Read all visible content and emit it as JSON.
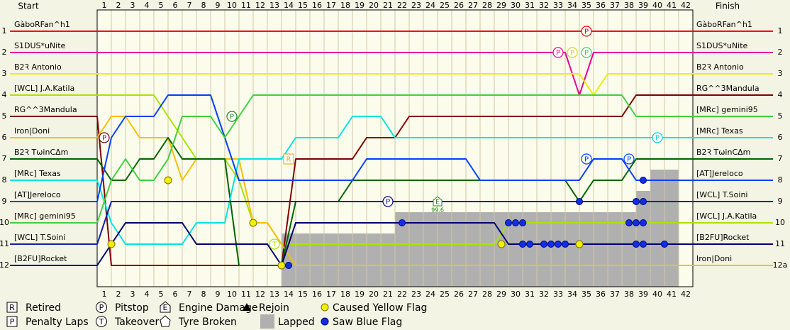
{
  "chart_data": {
    "type": "line",
    "title": "Start",
    "title_right": "Finish",
    "x": [
      0,
      1,
      2,
      3,
      4,
      5,
      6,
      7,
      8,
      9,
      10,
      11,
      12,
      13,
      14,
      15,
      16,
      17,
      18,
      19,
      20,
      21,
      22,
      23,
      24,
      25,
      26,
      27,
      28,
      29,
      30,
      31,
      32,
      33,
      34,
      35,
      36,
      37,
      38,
      39,
      40,
      41,
      42
    ],
    "xlim": [
      0,
      42
    ],
    "xticks": [
      1,
      2,
      3,
      4,
      5,
      6,
      7,
      8,
      9,
      10,
      11,
      12,
      13,
      14,
      15,
      16,
      17,
      18,
      19,
      20,
      21,
      22,
      23,
      24,
      25,
      26,
      27,
      28,
      29,
      30,
      31,
      32,
      33,
      34,
      35,
      36,
      37,
      38,
      39,
      40,
      41,
      42
    ],
    "ylim": [
      0,
      13
    ],
    "yticks": [
      1,
      2,
      3,
      4,
      5,
      6,
      7,
      8,
      9,
      10,
      11,
      12
    ],
    "y2ticks": [
      1,
      2,
      3,
      4,
      5,
      6,
      7,
      8,
      9,
      10,
      11,
      {
        "value": 12,
        "label": "12a"
      }
    ],
    "series": [
      {
        "name": "GàboRFan^h1",
        "color": "#ff0000",
        "values": [
          1,
          1,
          1,
          1,
          1,
          1,
          1,
          1,
          1,
          1,
          1,
          1,
          1,
          1,
          1,
          1,
          1,
          1,
          1,
          1,
          1,
          1,
          1,
          1,
          1,
          1,
          1,
          1,
          1,
          1,
          1,
          1,
          1,
          1,
          1,
          1,
          1,
          1,
          1,
          1,
          1,
          1,
          1
        ]
      },
      {
        "name": "S1DUS*uNite",
        "color": "#e8009a",
        "values": [
          2,
          2,
          2,
          2,
          2,
          2,
          2,
          2,
          2,
          2,
          2,
          2,
          2,
          2,
          2,
          2,
          2,
          2,
          2,
          2,
          2,
          2,
          2,
          2,
          2,
          2,
          2,
          2,
          2,
          2,
          2,
          2,
          2,
          2,
          4,
          2,
          2,
          2,
          2,
          2,
          2,
          2,
          2
        ]
      },
      {
        "name": "B2Ꝛ Antonio",
        "color": "#eeee00",
        "values": [
          3,
          3,
          3,
          3,
          3,
          3,
          3,
          3,
          3,
          3,
          3,
          3,
          3,
          3,
          3,
          3,
          3,
          3,
          3,
          3,
          3,
          3,
          3,
          3,
          3,
          3,
          3,
          3,
          3,
          3,
          3,
          3,
          3,
          3,
          3,
          4,
          3,
          3,
          3,
          3,
          3,
          3,
          3
        ]
      },
      {
        "name": "[WCL] J.A.Katila",
        "color": "#a8e400",
        "values": [
          4,
          4,
          4,
          4,
          4,
          5,
          6,
          7,
          7,
          7,
          8,
          10,
          10,
          11,
          11,
          11,
          11,
          11,
          11,
          11,
          11,
          11,
          11,
          11,
          11,
          11,
          11,
          11,
          11,
          10,
          10,
          10,
          10,
          10,
          10,
          10,
          10,
          10,
          10,
          10,
          10,
          10,
          10
        ]
      },
      {
        "name": "RG^^3Mandula",
        "color": "#800000",
        "values": [
          5,
          12,
          12,
          12,
          12,
          12,
          12,
          12,
          12,
          12,
          12,
          12,
          12,
          12,
          7,
          7,
          7,
          7,
          7,
          6,
          6,
          6,
          5,
          5,
          5,
          5,
          5,
          5,
          5,
          5,
          5,
          5,
          5,
          5,
          5,
          5,
          5,
          5,
          4,
          4,
          4,
          4,
          4
        ]
      },
      {
        "name": "Iron|Doni",
        "color": "#f8c000",
        "values": [
          6,
          5,
          5,
          6,
          6,
          6,
          8,
          7,
          7,
          7,
          7,
          10,
          10,
          11,
          12,
          12,
          12,
          12,
          12,
          12,
          12,
          12,
          12,
          12,
          12,
          12,
          12,
          12,
          12,
          12,
          12,
          12,
          12,
          12,
          12,
          12,
          12,
          12,
          12,
          12,
          12,
          12,
          12
        ]
      },
      {
        "name": "B2Ꝛ TωinCΔm",
        "color": "#006400",
        "values": [
          7,
          8,
          8,
          7,
          7,
          6,
          7,
          7,
          7,
          7,
          12,
          12,
          12,
          12,
          9,
          9,
          9,
          9,
          8,
          8,
          8,
          8,
          8,
          8,
          8,
          8,
          8,
          8,
          8,
          8,
          8,
          8,
          8,
          8,
          9,
          8,
          8,
          8,
          7,
          7,
          7,
          7,
          7
        ]
      },
      {
        "name": "[MRc] Texas",
        "color": "#00e4e4",
        "values": [
          8,
          10,
          11,
          11,
          11,
          11,
          11,
          10,
          10,
          10,
          7,
          7,
          7,
          7,
          6,
          6,
          6,
          6,
          5,
          5,
          5,
          6,
          6,
          6,
          6,
          6,
          6,
          6,
          6,
          6,
          6,
          6,
          6,
          6,
          6,
          6,
          6,
          6,
          6,
          6,
          6,
          6,
          6
        ]
      },
      {
        "name": "[AT]Jereloco",
        "color": "#0040ff",
        "values": [
          9,
          6,
          5,
          5,
          5,
          4,
          4,
          4,
          4,
          6,
          8,
          8,
          8,
          8,
          8,
          8,
          8,
          8,
          8,
          7,
          7,
          7,
          7,
          7,
          7,
          7,
          7,
          8,
          8,
          8,
          8,
          8,
          8,
          8,
          8,
          7,
          7,
          7,
          8,
          8,
          8,
          8,
          8
        ]
      },
      {
        "name": "[MRc] gemini95",
        "color": "#40d040",
        "values": [
          10,
          8,
          7,
          8,
          8,
          7,
          5,
          5,
          5,
          6,
          5,
          4,
          4,
          4,
          4,
          4,
          4,
          4,
          4,
          4,
          4,
          4,
          4,
          4,
          4,
          4,
          4,
          4,
          4,
          4,
          4,
          4,
          4,
          4,
          4,
          4,
          4,
          4,
          5,
          5,
          5,
          5,
          5
        ]
      },
      {
        "name": "[WCL] T.Soini",
        "color": "#1020b0",
        "values": [
          11,
          9,
          9,
          9,
          9,
          9,
          9,
          9,
          9,
          9,
          9,
          9,
          9,
          9,
          9,
          9,
          9,
          9,
          9,
          9,
          9,
          9,
          9,
          9,
          9,
          9,
          9,
          9,
          9,
          9,
          9,
          9,
          9,
          9,
          9,
          9,
          9,
          9,
          9,
          9,
          9,
          9,
          9
        ]
      },
      {
        "name": "[B2FU]Rocket",
        "color": "#000070",
        "values": [
          12,
          11,
          10,
          10,
          10,
          10,
          10,
          11,
          11,
          11,
          11,
          11,
          11,
          12,
          10,
          10,
          10,
          10,
          10,
          10,
          10,
          10,
          10,
          10,
          10,
          10,
          10,
          10,
          10,
          11,
          11,
          11,
          11,
          11,
          11,
          11,
          11,
          11,
          11,
          11,
          11,
          11,
          11
        ]
      }
    ],
    "lapped": [
      null,
      null,
      null,
      null,
      null,
      null,
      null,
      null,
      null,
      null,
      null,
      null,
      null,
      10.5,
      10.5,
      10.5,
      10.5,
      10.5,
      10.5,
      10.5,
      10.5,
      9.5,
      9.5,
      9.5,
      9.5,
      9.5,
      9.5,
      9.5,
      9.5,
      9.5,
      9.5,
      9.5,
      9.5,
      9.5,
      9.5,
      9.5,
      9.5,
      9.5,
      8.5,
      7.5,
      7.5,
      null
    ],
    "pitstops": [
      {
        "x": 0.5,
        "pos": 6,
        "color": "#800000"
      },
      {
        "x": 9.5,
        "pos": 5,
        "color": "#208020"
      },
      {
        "x": 20.5,
        "pos": 9,
        "color": "#000080"
      },
      {
        "x": 32.5,
        "pos": 2,
        "color": "#e8009a"
      },
      {
        "x": 33.5,
        "pos": 2,
        "color": "#d8d800"
      },
      {
        "x": 34.5,
        "pos": 2,
        "color": "#40d040"
      },
      {
        "x": 34.5,
        "pos": 1,
        "color": "#ff0000"
      },
      {
        "x": 34.5,
        "pos": 7,
        "color": "#0040ff"
      },
      {
        "x": 37.5,
        "pos": 7,
        "color": "#0040ff"
      },
      {
        "x": 39.5,
        "pos": 6,
        "color": "#00d0e0"
      }
    ],
    "retired": [
      {
        "x": 13.5,
        "pos": 7,
        "color": "#f0a000"
      }
    ],
    "takeovers": [
      {
        "x": 12.5,
        "pos": 11,
        "color": "#a8e400"
      }
    ],
    "engine_damage": [
      {
        "x": 24,
        "pos": 9,
        "note": "99.6",
        "color": "#208020"
      }
    ],
    "yellow_flags": [
      {
        "x": 1,
        "pos": 11
      },
      {
        "x": 5,
        "pos": 8
      },
      {
        "x": 11,
        "pos": 10
      },
      {
        "x": 13,
        "pos": 12
      },
      {
        "x": 28.5,
        "pos": 11
      },
      {
        "x": 34,
        "pos": 11
      }
    ],
    "blue_flags": [
      {
        "x": 13.5,
        "pos": 12
      },
      {
        "x": 21.5,
        "pos": 10
      },
      {
        "x": 29,
        "pos": 10
      },
      {
        "x": 29.5,
        "pos": 10
      },
      {
        "x": 30,
        "pos": 10
      },
      {
        "x": 30,
        "pos": 11
      },
      {
        "x": 30.5,
        "pos": 11
      },
      {
        "x": 31.5,
        "pos": 11
      },
      {
        "x": 32,
        "pos": 11
      },
      {
        "x": 32.5,
        "pos": 11
      },
      {
        "x": 33,
        "pos": 11
      },
      {
        "x": 34,
        "pos": 9
      },
      {
        "x": 37.5,
        "pos": 10
      },
      {
        "x": 38,
        "pos": 10
      },
      {
        "x": 38.5,
        "pos": 10
      },
      {
        "x": 38,
        "pos": 9
      },
      {
        "x": 38.5,
        "pos": 9
      },
      {
        "x": 38.5,
        "pos": 8
      },
      {
        "x": 38,
        "pos": 11
      },
      {
        "x": 38.5,
        "pos": 11
      },
      {
        "x": 40,
        "pos": 11
      }
    ],
    "legend": [
      {
        "symbol": "R",
        "label": "Retired"
      },
      {
        "symbol": "P",
        "label": "Penalty Laps"
      },
      {
        "symbol": "P",
        "label": "Pitstop"
      },
      {
        "symbol": "T",
        "label": "Takeover"
      },
      {
        "symbol": "E",
        "label": "Engine Damage"
      },
      {
        "label": "Tyre Broken"
      },
      {
        "label": "Rejoin"
      },
      {
        "label": "Lapped"
      },
      {
        "label": "Caused Yellow Flag"
      },
      {
        "label": "Saw Blue Flag"
      }
    ]
  }
}
